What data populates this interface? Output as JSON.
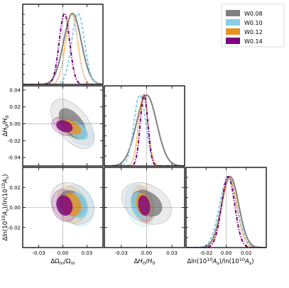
{
  "chart_data": {
    "type": "triangle-corner",
    "legend": {
      "placement": "top-right",
      "entries": [
        {
          "label": "W0.08",
          "color": "#808080",
          "style": "solid"
        },
        {
          "label": "W0.10",
          "color": "#87cee6",
          "style": "dashed"
        },
        {
          "label": "W0.12",
          "color": "#e8911f",
          "style": "dotted"
        },
        {
          "label": "W0.14",
          "color": "#800080",
          "style": "dashdot"
        }
      ]
    },
    "parameters": [
      {
        "key": "om",
        "label": "ΔΩm/Ωm",
        "range": [
          -0.05,
          0.05
        ],
        "ticks": [
          "-0.03",
          "0.00",
          "0.03"
        ],
        "tick_values": [
          -0.03,
          0.0,
          0.03
        ]
      },
      {
        "key": "h0",
        "label": "ΔH0/H0",
        "range": [
          -0.05,
          0.045
        ],
        "ticks": [
          "-0.03",
          "0.00",
          "0.03"
        ],
        "tick_values": [
          -0.03,
          0.0,
          0.03
        ],
        "y_ticks": [
          "0.04",
          "0.02",
          "0.00",
          "-0.02",
          "-0.04"
        ],
        "y_tick_values": [
          0.04,
          0.02,
          0.0,
          -0.02,
          -0.04
        ]
      },
      {
        "key": "as",
        "label": "Δln(10^10 As)/ln(10^10 As)",
        "range": [
          -0.04,
          0.04
        ],
        "ticks": [
          "-0.02",
          "0.00",
          "0.02"
        ],
        "tick_values": [
          -0.02,
          0.0,
          0.02
        ],
        "y_ticks": [
          "0.02",
          "0.00",
          "-0.02"
        ],
        "y_tick_values": [
          0.02,
          0.0,
          -0.02
        ]
      }
    ],
    "axis_text": {
      "x_om": "ΔΩm/Ωm",
      "x_h0": "ΔH0/H0",
      "x_as": "Δln(10^10As)/ln(10^10As)",
      "y_h0": "ΔH0/H0",
      "y_as": "Δln(10^10As)/ln(10^10As)"
    },
    "series": [
      {
        "name": "W0.08",
        "color": "#808080",
        "mean": {
          "om": 0.012,
          "h0": 0.0,
          "as": 0.004
        },
        "sigma": {
          "om": 0.011,
          "h0": 0.012,
          "as": 0.0085
        },
        "corr": {
          "om_h0": -0.55,
          "om_as": -0.25,
          "h0_as": -0.3
        }
      },
      {
        "name": "W0.10",
        "color": "#87cee6",
        "mean": {
          "om": 0.019,
          "h0": -0.008,
          "as": 0.002
        },
        "sigma": {
          "om": 0.008,
          "h0": 0.007,
          "as": 0.0085
        },
        "corr": {
          "om_h0": -0.5,
          "om_as": -0.2,
          "h0_as": -0.25
        }
      },
      {
        "name": "W0.12",
        "color": "#e8911f",
        "mean": {
          "om": 0.011,
          "h0": -0.004,
          "as": 0.003
        },
        "sigma": {
          "om": 0.0075,
          "h0": 0.0055,
          "as": 0.0075
        },
        "corr": {
          "om_h0": -0.5,
          "om_as": -0.2,
          "h0_as": -0.25
        }
      },
      {
        "name": "W0.14",
        "color": "#800080",
        "mean": {
          "om": 0.002,
          "h0": -0.003,
          "as": 0.002
        },
        "sigma": {
          "om": 0.0065,
          "h0": 0.0045,
          "as": 0.0065
        },
        "corr": {
          "om_h0": -0.3,
          "om_as": -0.15,
          "h0_as": -0.2
        }
      }
    ],
    "reference_lines": {
      "om": 0.0,
      "h0": 0.0,
      "as": 0.0
    },
    "grid": false
  }
}
